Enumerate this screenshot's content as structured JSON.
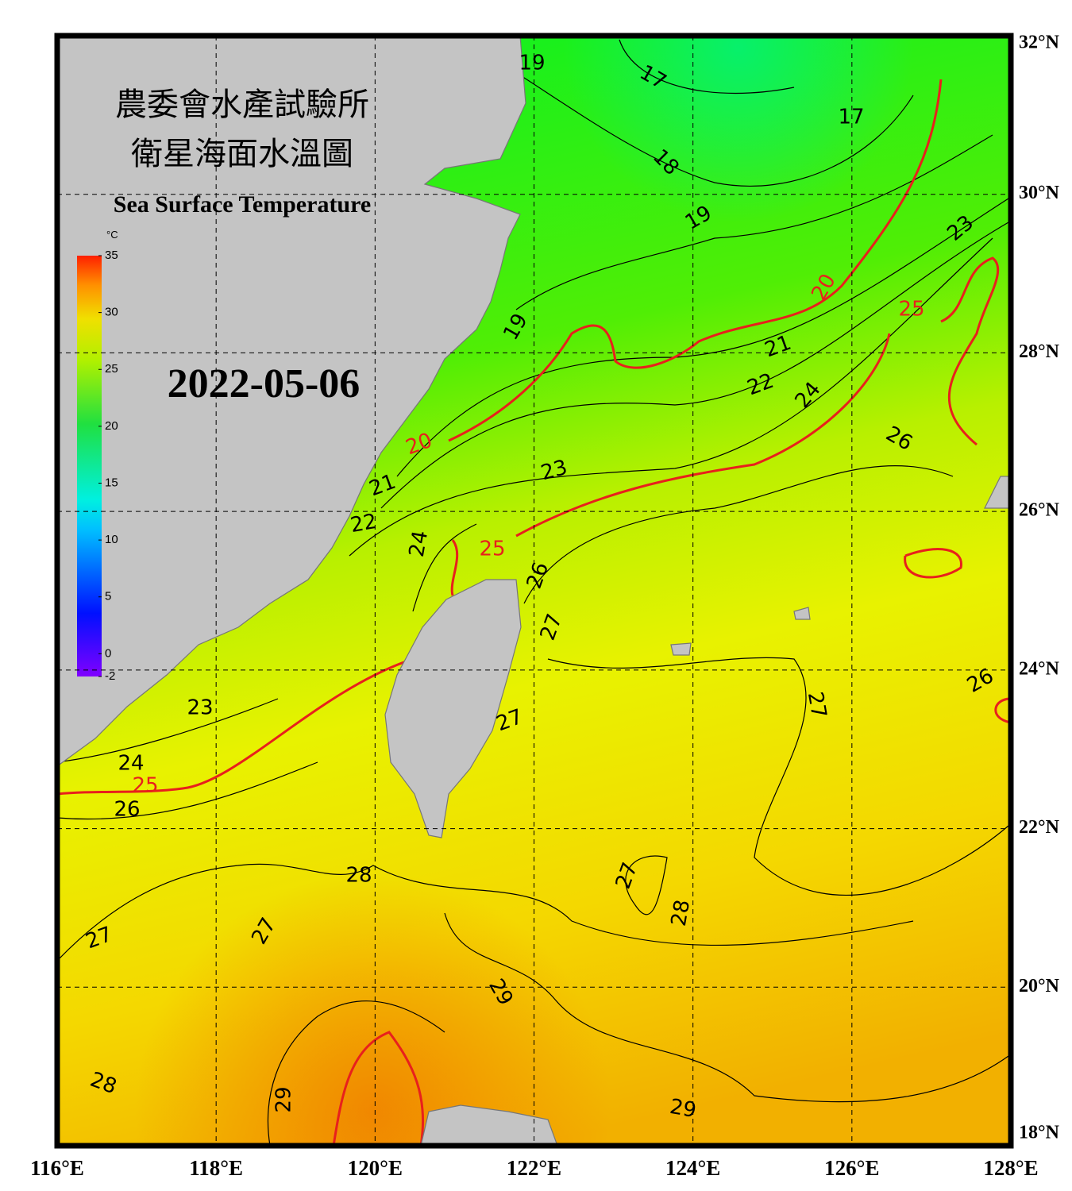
{
  "header": {
    "title_zh_1": "農委會水產試驗所",
    "title_zh_2": "衛星海面水溫圖",
    "title_en": "Sea Surface Temperature",
    "date": "2022-05-06"
  },
  "map": {
    "lonlim": [
      116,
      128
    ],
    "latlim": [
      18,
      32
    ],
    "grid": true,
    "lonticks": [
      {
        "value": 116,
        "label": "116°E"
      },
      {
        "value": 118,
        "label": "118°E"
      },
      {
        "value": 120,
        "label": "120°E"
      },
      {
        "value": 122,
        "label": "122°E"
      },
      {
        "value": 124,
        "label": "124°E"
      },
      {
        "value": 126,
        "label": "126°E"
      },
      {
        "value": 128,
        "label": "128°E"
      }
    ],
    "latticks": [
      {
        "value": 18,
        "label": "18°N"
      },
      {
        "value": 20,
        "label": "20°N"
      },
      {
        "value": 22,
        "label": "22°N"
      },
      {
        "value": 24,
        "label": "24°N"
      },
      {
        "value": 26,
        "label": "26°N"
      },
      {
        "value": 28,
        "label": "28°N"
      },
      {
        "value": 30,
        "label": "30°N"
      },
      {
        "value": 32,
        "label": "32°N"
      }
    ]
  },
  "colorbar": {
    "unit": "°C",
    "lim": [
      -2,
      35
    ],
    "ticks": [
      -2,
      0,
      5,
      10,
      15,
      20,
      25,
      30,
      35
    ]
  },
  "contour_labels": [
    19,
    17,
    17,
    18,
    19,
    23,
    20,
    25,
    19,
    21,
    22,
    24,
    20,
    26,
    23,
    21,
    22,
    24,
    25,
    26,
    27,
    26,
    23,
    27,
    27,
    24,
    25,
    26,
    28,
    27,
    28,
    27,
    27,
    29,
    28,
    29,
    29
  ]
}
